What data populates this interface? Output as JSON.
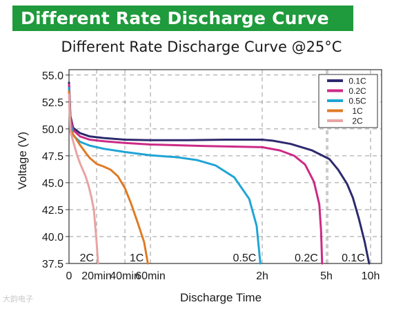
{
  "header": {
    "banner_title": "Different Rate Discharge Curve"
  },
  "watermark": "大韵电子",
  "chart_data": {
    "type": "line",
    "title": "Different Rate Discharge Curve @25°C",
    "xlabel": "Discharge Time",
    "ylabel": "Voltage (V)",
    "ylim": [
      37.5,
      55.5
    ],
    "yticks": [
      37.5,
      40.0,
      42.5,
      45.0,
      47.5,
      50.0,
      52.5,
      55.0
    ],
    "x_scale": "minutes, piecewise axis",
    "xticks": [
      {
        "min": 0,
        "label": "0"
      },
      {
        "min": 20,
        "label": "20min"
      },
      {
        "min": 40,
        "label": "40min"
      },
      {
        "min": 60,
        "label": "60min"
      },
      {
        "min": 120,
        "label": "2h"
      },
      {
        "min": 300,
        "label": "5h"
      },
      {
        "min": 600,
        "label": "10h"
      }
    ],
    "grid": true,
    "legend": "top-right",
    "series": [
      {
        "name": "0.1C",
        "end_label": "0.1C",
        "color": "#2d2a6e",
        "points": [
          [
            0,
            54.3
          ],
          [
            1,
            51.2
          ],
          [
            3,
            50.1
          ],
          [
            8,
            49.6
          ],
          [
            15,
            49.3
          ],
          [
            25,
            49.15
          ],
          [
            40,
            49.0
          ],
          [
            60,
            48.95
          ],
          [
            80,
            48.95
          ],
          [
            100,
            49.0
          ],
          [
            120,
            49.0
          ],
          [
            150,
            48.9
          ],
          [
            200,
            48.6
          ],
          [
            260,
            48.0
          ],
          [
            320,
            47.2
          ],
          [
            380,
            46.2
          ],
          [
            440,
            44.9
          ],
          [
            480,
            43.6
          ],
          [
            520,
            41.7
          ],
          [
            560,
            39.5
          ],
          [
            590,
            37.5
          ]
        ]
      },
      {
        "name": "0.2C",
        "end_label": "0.2C",
        "color": "#cc2a86",
        "points": [
          [
            0,
            54.1
          ],
          [
            1,
            51.0
          ],
          [
            3,
            49.9
          ],
          [
            8,
            49.3
          ],
          [
            15,
            49.0
          ],
          [
            25,
            48.85
          ],
          [
            40,
            48.7
          ],
          [
            60,
            48.55
          ],
          [
            90,
            48.4
          ],
          [
            120,
            48.3
          ],
          [
            170,
            48.0
          ],
          [
            210,
            47.5
          ],
          [
            240,
            46.7
          ],
          [
            265,
            45.1
          ],
          [
            280,
            43.0
          ],
          [
            285,
            40.5
          ],
          [
            288,
            37.5
          ]
        ]
      },
      {
        "name": "0.5C",
        "end_label": "0.5C",
        "color": "#1fa4d6",
        "points": [
          [
            0,
            53.8
          ],
          [
            1,
            50.6
          ],
          [
            3,
            49.4
          ],
          [
            8,
            48.8
          ],
          [
            15,
            48.45
          ],
          [
            25,
            48.15
          ],
          [
            40,
            47.85
          ],
          [
            60,
            47.55
          ],
          [
            75,
            47.35
          ],
          [
            85,
            47.1
          ],
          [
            95,
            46.6
          ],
          [
            105,
            45.5
          ],
          [
            113,
            43.5
          ],
          [
            117,
            41.0
          ],
          [
            119,
            37.5
          ]
        ]
      },
      {
        "name": "1C",
        "end_label": "1C",
        "color": "#e07a24",
        "points": [
          [
            0,
            53.5
          ],
          [
            1,
            50.1
          ],
          [
            2,
            49.7
          ],
          [
            5,
            49.1
          ],
          [
            8,
            48.5
          ],
          [
            12,
            47.8
          ],
          [
            15,
            47.3
          ],
          [
            20,
            46.75
          ],
          [
            25,
            46.5
          ],
          [
            30,
            46.2
          ],
          [
            35,
            45.6
          ],
          [
            40,
            44.5
          ],
          [
            45,
            43.0
          ],
          [
            50,
            41.3
          ],
          [
            55,
            39.5
          ],
          [
            58,
            37.5
          ]
        ]
      },
      {
        "name": "2C",
        "end_label": "2C",
        "color": "#e8a3a3",
        "points": [
          [
            0,
            53.2
          ],
          [
            1,
            49.8
          ],
          [
            2,
            49.3
          ],
          [
            4,
            48.4
          ],
          [
            6,
            47.5
          ],
          [
            8,
            46.8
          ],
          [
            10,
            46.2
          ],
          [
            12,
            45.6
          ],
          [
            14,
            44.8
          ],
          [
            16,
            43.8
          ],
          [
            18,
            42.5
          ],
          [
            19,
            41.0
          ],
          [
            20,
            39.5
          ],
          [
            21,
            37.5
          ]
        ]
      }
    ]
  }
}
